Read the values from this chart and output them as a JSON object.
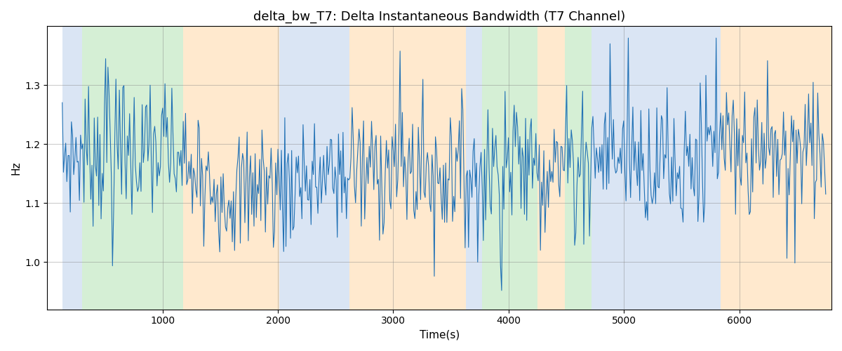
{
  "title": "delta_bw_T7: Delta Instantaneous Bandwidth (T7 Channel)",
  "xlabel": "Time(s)",
  "ylabel": "Hz",
  "line_color": "#2171b5",
  "line_width": 0.8,
  "xlim": [
    0,
    6800
  ],
  "ylim": [
    0.92,
    1.4
  ],
  "yticks": [
    1.0,
    1.1,
    1.2,
    1.3
  ],
  "xticks": [
    1000,
    2000,
    3000,
    4000,
    5000,
    6000
  ],
  "bg_bands": [
    {
      "xmin": 130,
      "xmax": 300,
      "color": "#aec6e8",
      "alpha": 0.45
    },
    {
      "xmin": 300,
      "xmax": 1180,
      "color": "#98d898",
      "alpha": 0.4
    },
    {
      "xmin": 1180,
      "xmax": 2010,
      "color": "#ffd59e",
      "alpha": 0.5
    },
    {
      "xmin": 2010,
      "xmax": 2620,
      "color": "#aec6e8",
      "alpha": 0.45
    },
    {
      "xmin": 2620,
      "xmax": 3630,
      "color": "#ffd59e",
      "alpha": 0.5
    },
    {
      "xmin": 3630,
      "xmax": 3770,
      "color": "#aec6e8",
      "alpha": 0.45
    },
    {
      "xmin": 3770,
      "xmax": 4250,
      "color": "#98d898",
      "alpha": 0.4
    },
    {
      "xmin": 4250,
      "xmax": 4490,
      "color": "#ffd59e",
      "alpha": 0.5
    },
    {
      "xmin": 4490,
      "xmax": 4720,
      "color": "#98d898",
      "alpha": 0.4
    },
    {
      "xmin": 4720,
      "xmax": 5840,
      "color": "#aec6e8",
      "alpha": 0.45
    },
    {
      "xmin": 5840,
      "xmax": 6800,
      "color": "#ffd59e",
      "alpha": 0.5
    }
  ],
  "figsize": [
    12.0,
    5.0
  ],
  "dpi": 100
}
